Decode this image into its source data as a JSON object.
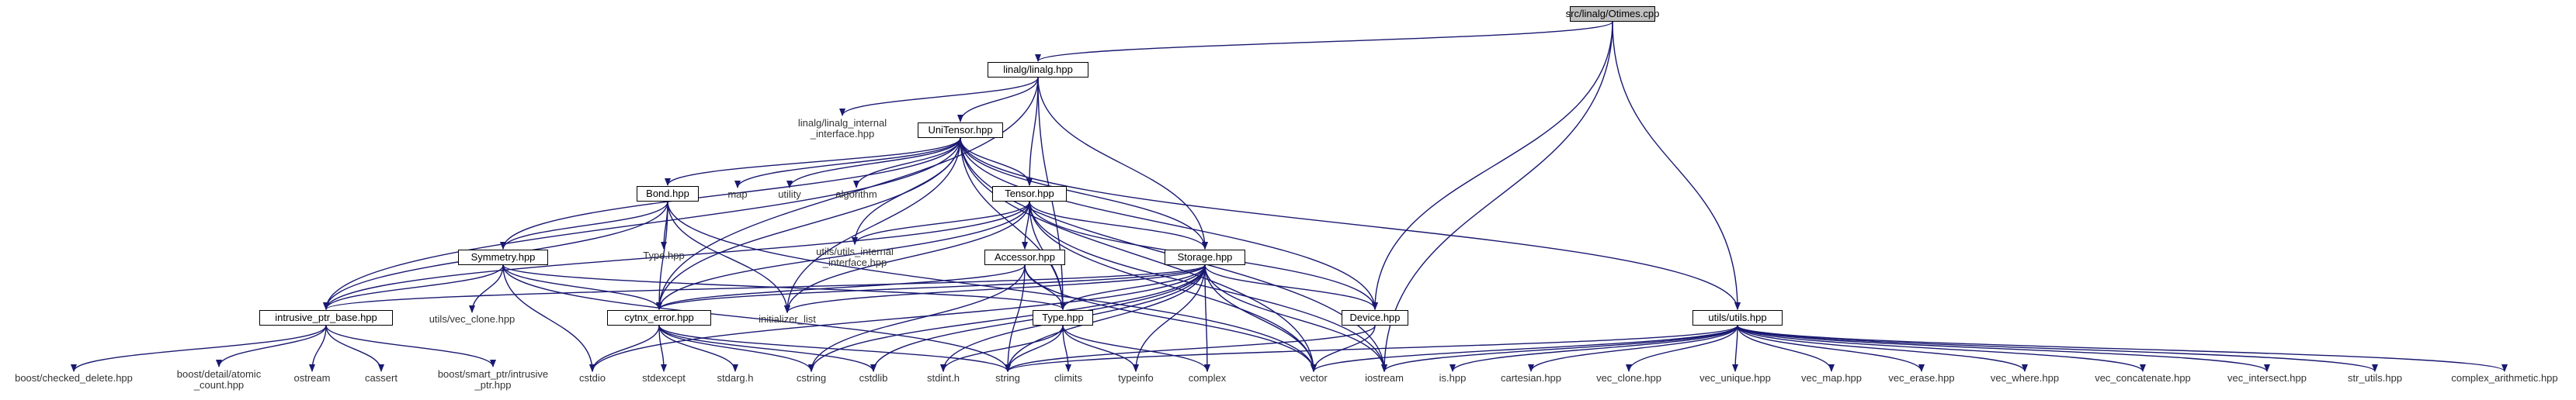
{
  "graph": {
    "edge_color": "#191970",
    "arrow_color": "#191970",
    "root_fill": "#bfbfbf",
    "node_fill": "#ffffff",
    "nodes": [
      {
        "id": "root",
        "label": "src/linalg/Otimes.cpp",
        "type": "root"
      },
      {
        "id": "linalg",
        "label": "linalg/linalg.hpp",
        "type": "boxed"
      },
      {
        "id": "linalg_internal",
        "label": "linalg/linalg_internal\n_interface.hpp",
        "type": "ext"
      },
      {
        "id": "unitensor",
        "label": "UniTensor.hpp",
        "type": "boxed"
      },
      {
        "id": "bond",
        "label": "Bond.hpp",
        "type": "boxed"
      },
      {
        "id": "map",
        "label": "map",
        "type": "ext"
      },
      {
        "id": "utility",
        "label": "utility",
        "type": "ext"
      },
      {
        "id": "algorithm",
        "label": "algorithm",
        "type": "ext"
      },
      {
        "id": "tensor",
        "label": "Tensor.hpp",
        "type": "boxed"
      },
      {
        "id": "utils_internal",
        "label": "utils/utils_internal\n_interface.hpp",
        "type": "ext"
      },
      {
        "id": "type_hpp_ext",
        "label": "Type.hpp",
        "type": "ext"
      },
      {
        "id": "symmetry",
        "label": "Symmetry.hpp",
        "type": "boxed"
      },
      {
        "id": "accessor",
        "label": "Accessor.hpp",
        "type": "boxed"
      },
      {
        "id": "storage",
        "label": "Storage.hpp",
        "type": "boxed"
      },
      {
        "id": "intrusive",
        "label": "intrusive_ptr_base.hpp",
        "type": "boxed"
      },
      {
        "id": "vec_clone_ext",
        "label": "utils/vec_clone.hpp",
        "type": "ext"
      },
      {
        "id": "cytnx_error",
        "label": "cytnx_error.hpp",
        "type": "boxed"
      },
      {
        "id": "init_list",
        "label": "initializer_list",
        "type": "ext"
      },
      {
        "id": "type_hpp",
        "label": "Type.hpp",
        "type": "boxed"
      },
      {
        "id": "device",
        "label": "Device.hpp",
        "type": "boxed"
      },
      {
        "id": "utils",
        "label": "utils/utils.hpp",
        "type": "boxed"
      },
      {
        "id": "checked_delete",
        "label": "boost/checked_delete.hpp",
        "type": "ext"
      },
      {
        "id": "atomic_count",
        "label": "boost/detail/atomic\n_count.hpp",
        "type": "ext"
      },
      {
        "id": "ostream",
        "label": "ostream",
        "type": "ext"
      },
      {
        "id": "cassert",
        "label": "cassert",
        "type": "ext"
      },
      {
        "id": "smart_ptr",
        "label": "boost/smart_ptr/intrusive\n_ptr.hpp",
        "type": "ext"
      },
      {
        "id": "cstdio",
        "label": "cstdio",
        "type": "ext"
      },
      {
        "id": "stdexcept",
        "label": "stdexcept",
        "type": "ext"
      },
      {
        "id": "stdarg",
        "label": "stdarg.h",
        "type": "ext"
      },
      {
        "id": "cstring",
        "label": "cstring",
        "type": "ext"
      },
      {
        "id": "cstdlib",
        "label": "cstdlib",
        "type": "ext"
      },
      {
        "id": "stdint",
        "label": "stdint.h",
        "type": "ext"
      },
      {
        "id": "string",
        "label": "string",
        "type": "ext"
      },
      {
        "id": "climits",
        "label": "climits",
        "type": "ext"
      },
      {
        "id": "typeinfo",
        "label": "typeinfo",
        "type": "ext"
      },
      {
        "id": "complex",
        "label": "complex",
        "type": "ext"
      },
      {
        "id": "vector",
        "label": "vector",
        "type": "ext"
      },
      {
        "id": "iostream",
        "label": "iostream",
        "type": "ext"
      },
      {
        "id": "is_hpp",
        "label": "is.hpp",
        "type": "ext"
      },
      {
        "id": "cartesian",
        "label": "cartesian.hpp",
        "type": "ext"
      },
      {
        "id": "vec_clone",
        "label": "vec_clone.hpp",
        "type": "ext"
      },
      {
        "id": "vec_unique",
        "label": "vec_unique.hpp",
        "type": "ext"
      },
      {
        "id": "vec_map",
        "label": "vec_map.hpp",
        "type": "ext"
      },
      {
        "id": "vec_erase",
        "label": "vec_erase.hpp",
        "type": "ext"
      },
      {
        "id": "vec_where",
        "label": "vec_where.hpp",
        "type": "ext"
      },
      {
        "id": "vec_concatenate",
        "label": "vec_concatenate.hpp",
        "type": "ext"
      },
      {
        "id": "vec_intersect",
        "label": "vec_intersect.hpp",
        "type": "ext"
      },
      {
        "id": "str_utils",
        "label": "str_utils.hpp",
        "type": "ext"
      },
      {
        "id": "complex_arith",
        "label": "complex_arithmetic.hpp",
        "type": "ext"
      }
    ],
    "edges": [
      [
        "root",
        "linalg"
      ],
      [
        "root",
        "device"
      ],
      [
        "root",
        "utils"
      ],
      [
        "root",
        "iostream"
      ],
      [
        "linalg",
        "linalg_internal"
      ],
      [
        "linalg",
        "unitensor"
      ],
      [
        "linalg",
        "tensor"
      ],
      [
        "linalg",
        "storage"
      ],
      [
        "linalg",
        "cytnx_error"
      ],
      [
        "linalg",
        "type_hpp"
      ],
      [
        "unitensor",
        "bond"
      ],
      [
        "unitensor",
        "map"
      ],
      [
        "unitensor",
        "utility"
      ],
      [
        "unitensor",
        "algorithm"
      ],
      [
        "unitensor",
        "tensor"
      ],
      [
        "unitensor",
        "utils_internal"
      ],
      [
        "unitensor",
        "symmetry"
      ],
      [
        "unitensor",
        "intrusive"
      ],
      [
        "unitensor",
        "cytnx_error"
      ],
      [
        "unitensor",
        "init_list"
      ],
      [
        "unitensor",
        "type_hpp"
      ],
      [
        "unitensor",
        "storage"
      ],
      [
        "unitensor",
        "device"
      ],
      [
        "unitensor",
        "utils"
      ],
      [
        "unitensor",
        "vector"
      ],
      [
        "unitensor",
        "iostream"
      ],
      [
        "bond",
        "type_hpp_ext"
      ],
      [
        "bond",
        "symmetry"
      ],
      [
        "bond",
        "intrusive"
      ],
      [
        "bond",
        "cytnx_error"
      ],
      [
        "bond",
        "init_list"
      ],
      [
        "bond",
        "vector"
      ],
      [
        "tensor",
        "accessor"
      ],
      [
        "tensor",
        "storage"
      ],
      [
        "tensor",
        "utils_internal"
      ],
      [
        "tensor",
        "intrusive"
      ],
      [
        "tensor",
        "cytnx_error"
      ],
      [
        "tensor",
        "type_hpp"
      ],
      [
        "tensor",
        "device"
      ],
      [
        "tensor",
        "init_list"
      ],
      [
        "tensor",
        "vector"
      ],
      [
        "tensor",
        "iostream"
      ],
      [
        "symmetry",
        "intrusive"
      ],
      [
        "symmetry",
        "vec_clone_ext"
      ],
      [
        "symmetry",
        "cytnx_error"
      ],
      [
        "symmetry",
        "type_hpp"
      ],
      [
        "symmetry",
        "cstdio"
      ],
      [
        "symmetry",
        "string"
      ],
      [
        "accessor",
        "cytnx_error"
      ],
      [
        "accessor",
        "type_hpp"
      ],
      [
        "accessor",
        "string"
      ],
      [
        "accessor",
        "cstring"
      ],
      [
        "accessor",
        "vector"
      ],
      [
        "storage",
        "intrusive"
      ],
      [
        "storage",
        "cytnx_error"
      ],
      [
        "storage",
        "type_hpp"
      ],
      [
        "storage",
        "device"
      ],
      [
        "storage",
        "init_list"
      ],
      [
        "storage",
        "complex"
      ],
      [
        "storage",
        "vector"
      ],
      [
        "storage",
        "iostream"
      ],
      [
        "storage",
        "typeinfo"
      ],
      [
        "storage",
        "cstdlib"
      ],
      [
        "storage",
        "stdint"
      ],
      [
        "storage",
        "cstdio"
      ],
      [
        "storage",
        "cstring"
      ],
      [
        "storage",
        "string"
      ],
      [
        "intrusive",
        "checked_delete"
      ],
      [
        "intrusive",
        "atomic_count"
      ],
      [
        "intrusive",
        "ostream"
      ],
      [
        "intrusive",
        "cassert"
      ],
      [
        "intrusive",
        "smart_ptr"
      ],
      [
        "cytnx_error",
        "cstdio"
      ],
      [
        "cytnx_error",
        "stdexcept"
      ],
      [
        "cytnx_error",
        "stdarg"
      ],
      [
        "cytnx_error",
        "cstring"
      ],
      [
        "cytnx_error",
        "cstdlib"
      ],
      [
        "cytnx_error",
        "string"
      ],
      [
        "type_hpp",
        "string"
      ],
      [
        "type_hpp",
        "climits"
      ],
      [
        "type_hpp",
        "typeinfo"
      ],
      [
        "type_hpp",
        "complex"
      ],
      [
        "type_hpp",
        "stdint"
      ],
      [
        "device",
        "vector"
      ],
      [
        "device",
        "string"
      ],
      [
        "utils",
        "is_hpp"
      ],
      [
        "utils",
        "cartesian"
      ],
      [
        "utils",
        "vec_clone"
      ],
      [
        "utils",
        "vec_unique"
      ],
      [
        "utils",
        "vec_map"
      ],
      [
        "utils",
        "vec_erase"
      ],
      [
        "utils",
        "vec_where"
      ],
      [
        "utils",
        "vec_concatenate"
      ],
      [
        "utils",
        "vec_intersect"
      ],
      [
        "utils",
        "str_utils"
      ],
      [
        "utils",
        "complex_arith"
      ],
      [
        "utils",
        "vector"
      ],
      [
        "utils",
        "string"
      ],
      [
        "utils",
        "iostream"
      ]
    ]
  }
}
